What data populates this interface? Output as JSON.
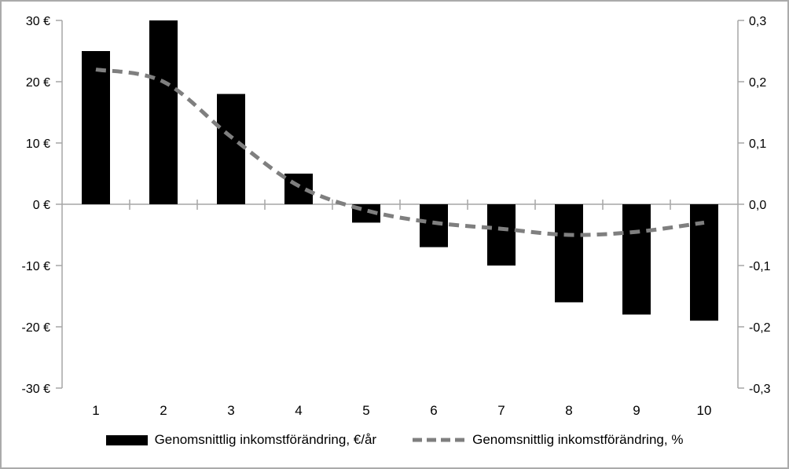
{
  "chart_data": {
    "type": "combo",
    "title": "",
    "categories": [
      "1",
      "2",
      "3",
      "4",
      "5",
      "6",
      "7",
      "8",
      "9",
      "10"
    ],
    "series": [
      {
        "name": "Genomsnittlig inkomstförändring, €/år",
        "type": "bar",
        "axis": "left",
        "color": "#000000",
        "values": [
          25,
          30,
          18,
          5,
          -3,
          -7,
          -10,
          -16,
          -18,
          -19
        ]
      },
      {
        "name": "Genomsnittlig inkomstförändring, %",
        "type": "line",
        "line_style": "dashed-smooth",
        "axis": "right",
        "color": "#7f7f7f",
        "values": [
          0.22,
          0.2,
          0.11,
          0.03,
          -0.01,
          -0.03,
          -0.04,
          -0.05,
          -0.045,
          -0.03
        ]
      }
    ],
    "left_axis": {
      "tick_labels": [
        "30 €",
        "20 €",
        "10 €",
        "0 €",
        "-10 €",
        "-20 €",
        "-30 €"
      ],
      "tick_values": [
        30,
        20,
        10,
        0,
        -10,
        -20,
        -30
      ],
      "min": -30,
      "max": 30
    },
    "right_axis": {
      "tick_labels": [
        "0,3",
        "0,2",
        "0,1",
        "0,0",
        "-0,1",
        "-0,2",
        "-0,3"
      ],
      "tick_values": [
        0.3,
        0.2,
        0.1,
        0.0,
        -0.1,
        -0.2,
        -0.3
      ],
      "min": -0.3,
      "max": 0.3
    },
    "xlabel": "",
    "ylabel": "",
    "grid": false,
    "legend_position": "bottom"
  },
  "colors": {
    "background": "#ffffff",
    "border": "#ababab",
    "axis": "#a6a6a6",
    "bar": "#000000",
    "line": "#7f7f7f",
    "text": "#000000"
  }
}
